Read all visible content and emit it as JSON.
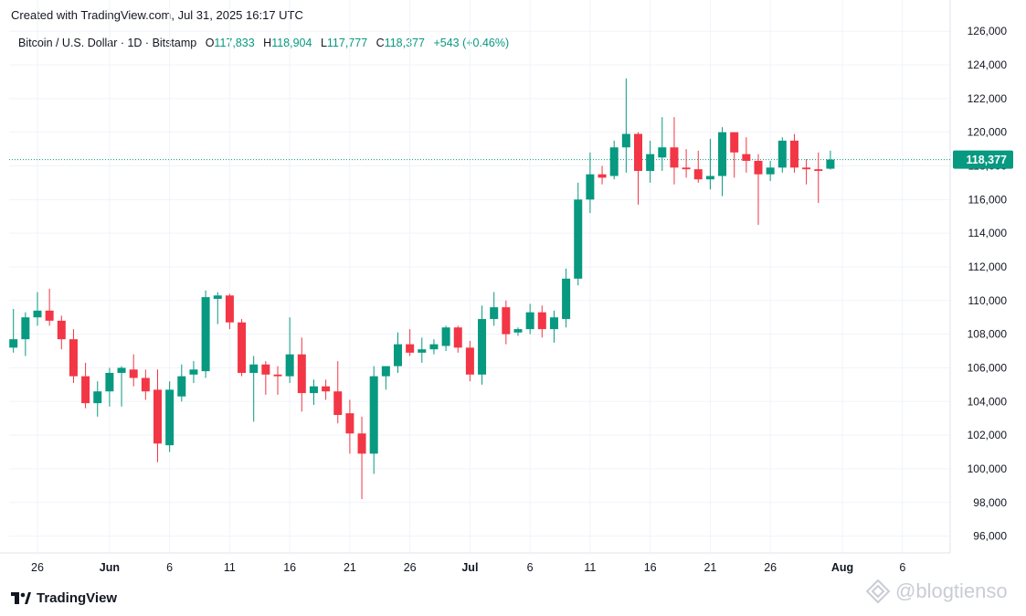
{
  "header": {
    "created": "Created with TradingView.com, Jul 31, 2025 16:17 UTC"
  },
  "legend": {
    "symbol": "Bitcoin / U.S. Dollar · 1D · Bitstamp",
    "o_label": "O",
    "o_value": "117,833",
    "h_label": "H",
    "h_value": "118,904",
    "l_label": "L",
    "l_value": "117,777",
    "c_label": "C",
    "c_value": "118,377",
    "change": "+543 (+0.46%)"
  },
  "footer": {
    "brand": "TradingView",
    "watermark": "@blogtienso"
  },
  "colors": {
    "up": "#089981",
    "down": "#f23645",
    "grid": "#f0f3fa",
    "text": "#131722"
  },
  "chart_data": {
    "type": "candlestick",
    "ylim": [
      95000,
      126500
    ],
    "y_ticks": [
      96000,
      98000,
      100000,
      102000,
      104000,
      106000,
      108000,
      110000,
      112000,
      114000,
      116000,
      118000,
      120000,
      122000,
      124000,
      126000
    ],
    "y_tick_labels": [
      "96,000",
      "98,000",
      "100,000",
      "102,000",
      "104,000",
      "106,000",
      "108,000",
      "110,000",
      "112,000",
      "114,000",
      "116,000",
      "118,000",
      "120,000",
      "122,000",
      "124,000",
      "126,000"
    ],
    "x_ticks": [
      {
        "label": "26",
        "day": 0
      },
      {
        "label": "Jun",
        "day": 6
      },
      {
        "label": "6",
        "day": 11
      },
      {
        "label": "11",
        "day": 16
      },
      {
        "label": "16",
        "day": 21
      },
      {
        "label": "21",
        "day": 26
      },
      {
        "label": "26",
        "day": 31
      },
      {
        "label": "Jul",
        "day": 36
      },
      {
        "label": "6",
        "day": 41
      },
      {
        "label": "11",
        "day": 46
      },
      {
        "label": "16",
        "day": 51
      },
      {
        "label": "21",
        "day": 56
      },
      {
        "label": "26",
        "day": 61
      },
      {
        "label": "Aug",
        "day": 67
      },
      {
        "label": "6",
        "day": 72
      }
    ],
    "current_price": 118377,
    "current_price_label": "118,377",
    "candles": [
      {
        "day": -2,
        "o": 107200,
        "h": 109500,
        "l": 106900,
        "c": 107700
      },
      {
        "day": -1,
        "o": 107700,
        "h": 109300,
        "l": 106700,
        "c": 109000
      },
      {
        "day": 0,
        "o": 109000,
        "h": 110500,
        "l": 108500,
        "c": 109400
      },
      {
        "day": 1,
        "o": 109400,
        "h": 110700,
        "l": 108500,
        "c": 108800
      },
      {
        "day": 2,
        "o": 108800,
        "h": 109100,
        "l": 107100,
        "c": 107700
      },
      {
        "day": 3,
        "o": 107700,
        "h": 108300,
        "l": 105100,
        "c": 105500
      },
      {
        "day": 4,
        "o": 105500,
        "h": 106300,
        "l": 103600,
        "c": 103900
      },
      {
        "day": 5,
        "o": 103900,
        "h": 105200,
        "l": 103100,
        "c": 104600
      },
      {
        "day": 6,
        "o": 104600,
        "h": 106000,
        "l": 103700,
        "c": 105700
      },
      {
        "day": 7,
        "o": 105700,
        "h": 106100,
        "l": 103700,
        "c": 106000
      },
      {
        "day": 8,
        "o": 105900,
        "h": 106800,
        "l": 104900,
        "c": 105400
      },
      {
        "day": 9,
        "o": 105400,
        "h": 105900,
        "l": 104100,
        "c": 104600
      },
      {
        "day": 10,
        "o": 104700,
        "h": 105900,
        "l": 100400,
        "c": 101500
      },
      {
        "day": 11,
        "o": 101400,
        "h": 105200,
        "l": 101000,
        "c": 104700
      },
      {
        "day": 12,
        "o": 104300,
        "h": 106200,
        "l": 104000,
        "c": 105500
      },
      {
        "day": 13,
        "o": 105600,
        "h": 106400,
        "l": 105100,
        "c": 105900
      },
      {
        "day": 14,
        "o": 105800,
        "h": 110600,
        "l": 105400,
        "c": 110200
      },
      {
        "day": 15,
        "o": 110100,
        "h": 110500,
        "l": 108600,
        "c": 110300
      },
      {
        "day": 16,
        "o": 110300,
        "h": 110400,
        "l": 108300,
        "c": 108700
      },
      {
        "day": 17,
        "o": 108700,
        "h": 108900,
        "l": 105500,
        "c": 105700
      },
      {
        "day": 18,
        "o": 105700,
        "h": 106700,
        "l": 102800,
        "c": 106200
      },
      {
        "day": 19,
        "o": 106200,
        "h": 106400,
        "l": 104400,
        "c": 105600
      },
      {
        "day": 20,
        "o": 105600,
        "h": 106100,
        "l": 104400,
        "c": 105500
      },
      {
        "day": 21,
        "o": 105500,
        "h": 109000,
        "l": 105100,
        "c": 106800
      },
      {
        "day": 22,
        "o": 106800,
        "h": 107800,
        "l": 103400,
        "c": 104500
      },
      {
        "day": 23,
        "o": 104500,
        "h": 105300,
        "l": 103800,
        "c": 104900
      },
      {
        "day": 24,
        "o": 104900,
        "h": 105300,
        "l": 104100,
        "c": 104600
      },
      {
        "day": 25,
        "o": 104600,
        "h": 106400,
        "l": 102700,
        "c": 103200
      },
      {
        "day": 26,
        "o": 103300,
        "h": 104100,
        "l": 100900,
        "c": 102100
      },
      {
        "day": 27,
        "o": 102100,
        "h": 103100,
        "l": 98200,
        "c": 100900
      },
      {
        "day": 28,
        "o": 100900,
        "h": 106100,
        "l": 99700,
        "c": 105500
      },
      {
        "day": 29,
        "o": 105500,
        "h": 106000,
        "l": 104700,
        "c": 106100
      },
      {
        "day": 30,
        "o": 106100,
        "h": 108100,
        "l": 105700,
        "c": 107400
      },
      {
        "day": 31,
        "o": 107400,
        "h": 108300,
        "l": 106700,
        "c": 106900
      },
      {
        "day": 32,
        "o": 106900,
        "h": 107800,
        "l": 106300,
        "c": 107100
      },
      {
        "day": 33,
        "o": 107100,
        "h": 107700,
        "l": 106800,
        "c": 107400
      },
      {
        "day": 34,
        "o": 107300,
        "h": 108500,
        "l": 107000,
        "c": 108400
      },
      {
        "day": 35,
        "o": 108400,
        "h": 108500,
        "l": 106900,
        "c": 107200
      },
      {
        "day": 36,
        "o": 107200,
        "h": 107600,
        "l": 105200,
        "c": 105600
      },
      {
        "day": 37,
        "o": 105600,
        "h": 109700,
        "l": 105000,
        "c": 108900
      },
      {
        "day": 38,
        "o": 108900,
        "h": 110500,
        "l": 108500,
        "c": 109600
      },
      {
        "day": 39,
        "o": 109600,
        "h": 110000,
        "l": 107400,
        "c": 108000
      },
      {
        "day": 40,
        "o": 108100,
        "h": 108400,
        "l": 107900,
        "c": 108300
      },
      {
        "day": 41,
        "o": 108300,
        "h": 109800,
        "l": 108000,
        "c": 109300
      },
      {
        "day": 42,
        "o": 109300,
        "h": 109700,
        "l": 107800,
        "c": 108300
      },
      {
        "day": 43,
        "o": 108300,
        "h": 109400,
        "l": 107500,
        "c": 109000
      },
      {
        "day": 44,
        "o": 108900,
        "h": 111900,
        "l": 108400,
        "c": 111300
      },
      {
        "day": 45,
        "o": 111300,
        "h": 117000,
        "l": 110900,
        "c": 116000
      },
      {
        "day": 46,
        "o": 116000,
        "h": 118800,
        "l": 115200,
        "c": 117500
      },
      {
        "day": 47,
        "o": 117500,
        "h": 118000,
        "l": 116900,
        "c": 117300
      },
      {
        "day": 48,
        "o": 117400,
        "h": 119500,
        "l": 117200,
        "c": 119100
      },
      {
        "day": 49,
        "o": 119100,
        "h": 123200,
        "l": 117600,
        "c": 119900
      },
      {
        "day": 50,
        "o": 119900,
        "h": 120000,
        "l": 115700,
        "c": 117700
      },
      {
        "day": 51,
        "o": 117700,
        "h": 119500,
        "l": 117000,
        "c": 118700
      },
      {
        "day": 52,
        "o": 118500,
        "h": 120900,
        "l": 117700,
        "c": 119100
      },
      {
        "day": 53,
        "o": 119100,
        "h": 120900,
        "l": 116900,
        "c": 117900
      },
      {
        "day": 54,
        "o": 117900,
        "h": 119000,
        "l": 117300,
        "c": 117800
      },
      {
        "day": 55,
        "o": 117800,
        "h": 118900,
        "l": 117000,
        "c": 117200
      },
      {
        "day": 56,
        "o": 117200,
        "h": 119600,
        "l": 116600,
        "c": 117400
      },
      {
        "day": 57,
        "o": 117400,
        "h": 120300,
        "l": 116200,
        "c": 120000
      },
      {
        "day": 58,
        "o": 120000,
        "h": 120000,
        "l": 117300,
        "c": 118800
      },
      {
        "day": 59,
        "o": 118700,
        "h": 119700,
        "l": 117600,
        "c": 118300
      },
      {
        "day": 60,
        "o": 118300,
        "h": 118700,
        "l": 114500,
        "c": 117500
      },
      {
        "day": 61,
        "o": 117500,
        "h": 118300,
        "l": 117100,
        "c": 117900
      },
      {
        "day": 62,
        "o": 117900,
        "h": 119700,
        "l": 117600,
        "c": 119500
      },
      {
        "day": 63,
        "o": 119500,
        "h": 119900,
        "l": 117600,
        "c": 117900
      },
      {
        "day": 64,
        "o": 117900,
        "h": 118400,
        "l": 116900,
        "c": 117800
      },
      {
        "day": 65,
        "o": 117800,
        "h": 118800,
        "l": 115800,
        "c": 117700
      },
      {
        "day": 66,
        "o": 117833,
        "h": 118904,
        "l": 117777,
        "c": 118377
      }
    ]
  }
}
